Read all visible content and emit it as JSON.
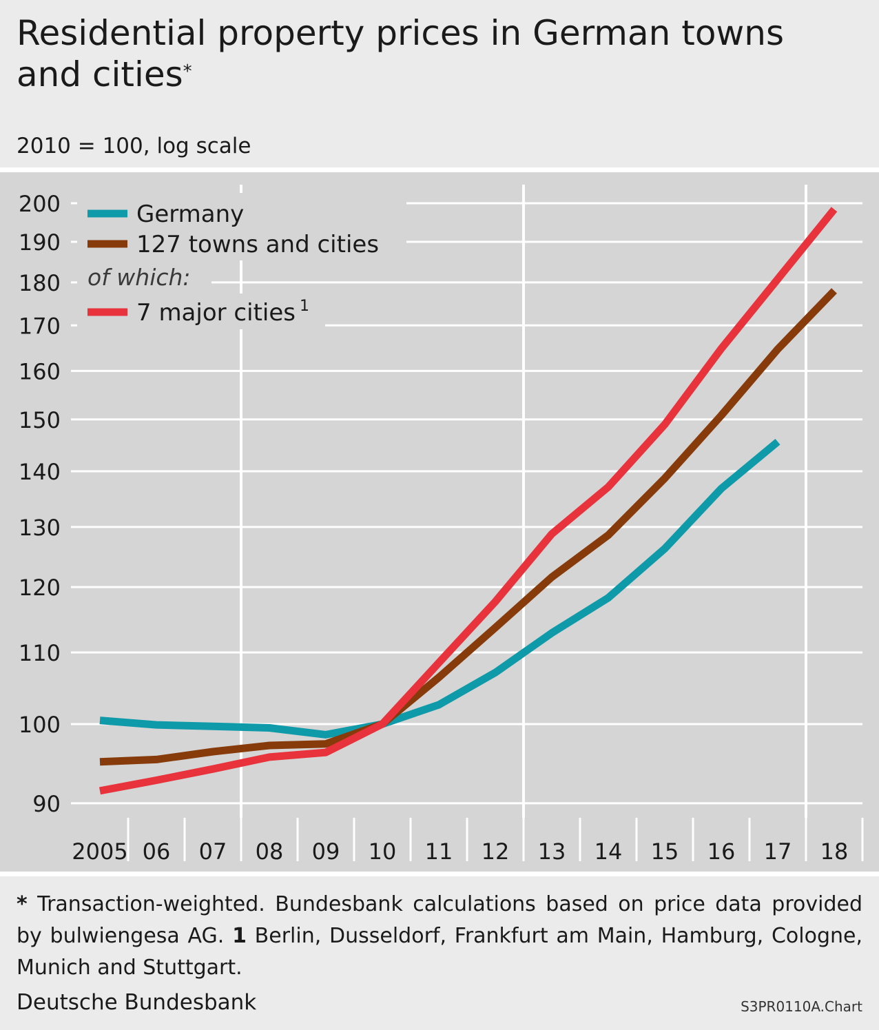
{
  "header": {
    "title": "Residential property prices in German towns and cities",
    "title_marker": "*",
    "subtitle": "2010 = 100, log scale"
  },
  "footer": {
    "note_marker": "*",
    "note_text": " Transaction-weighted. Bundesbank calculations based on price data provided by bulwiengesa AG. ",
    "note1_marker": "1",
    "note1_text": " Berlin, Dusseldorf, Frankfurt am Main, Hamburg, Cologne, Munich and Stuttgart.",
    "source": "Deutsche Bundesbank",
    "chart_id": "S3PR0110A.Chart"
  },
  "chart_data": {
    "type": "line",
    "yscale": "log",
    "ylim": [
      88,
      205
    ],
    "yticks": [
      90,
      100,
      110,
      120,
      130,
      140,
      150,
      160,
      170,
      180,
      190,
      200
    ],
    "x_categories": [
      "2005",
      "06",
      "07",
      "08",
      "09",
      "10",
      "11",
      "12",
      "13",
      "14",
      "15",
      "16",
      "17",
      "18"
    ],
    "legend": {
      "position": "top-left",
      "of_which_label": "of which:",
      "footnote_marker": "1"
    },
    "grid": "white",
    "series": [
      {
        "name": "Germany",
        "color": "#0f9aaa",
        "x": [
          2005,
          2006,
          2007,
          2008,
          2009,
          2010,
          2011,
          2012,
          2013,
          2014,
          2015,
          2016,
          2017
        ],
        "values": [
          100.5,
          99.9,
          99.7,
          99.5,
          98.6,
          100.0,
          102.6,
          107.1,
          112.9,
          118.3,
          126.3,
          136.8,
          145.6
        ]
      },
      {
        "name": "127 towns and cities",
        "color": "#873a0a",
        "x": [
          2005,
          2006,
          2007,
          2008,
          2009,
          2010,
          2011,
          2012,
          2013,
          2014,
          2015,
          2016,
          2017,
          2018
        ],
        "values": [
          95.1,
          95.4,
          96.4,
          97.2,
          97.4,
          100.0,
          106.4,
          113.7,
          121.6,
          128.6,
          138.7,
          150.8,
          164.7,
          178.0
        ]
      },
      {
        "name": "7 major cities",
        "color": "#e8323c",
        "x": [
          2005,
          2006,
          2007,
          2008,
          2009,
          2010,
          2011,
          2012,
          2013,
          2014,
          2015,
          2016,
          2017,
          2018
        ],
        "values": [
          91.5,
          92.8,
          94.2,
          95.7,
          96.3,
          100.0,
          108.5,
          117.7,
          128.8,
          137.1,
          149.0,
          164.8,
          180.8,
          198.4
        ]
      }
    ]
  }
}
